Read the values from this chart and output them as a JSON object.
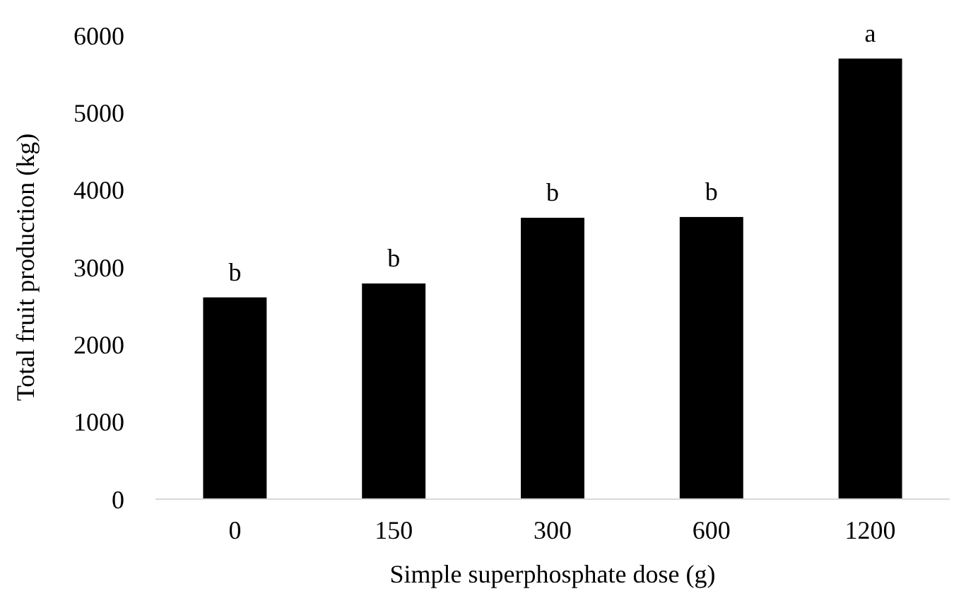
{
  "chart_data": {
    "type": "bar",
    "xlabel": "Simple superphosphate dose (g)",
    "ylabel": "Total fruit production (kg)",
    "categories": [
      "0",
      "150",
      "300",
      "600",
      "1200"
    ],
    "values": [
      2610,
      2790,
      3640,
      3650,
      5700
    ],
    "color": "#000000",
    "ylim": [
      0,
      6000
    ],
    "yticks": [
      0,
      1000,
      2000,
      3000,
      4000,
      5000,
      6000
    ],
    "grid": false,
    "annotations": [
      {
        "text": "b",
        "x": "0",
        "y": 2610
      },
      {
        "text": "b",
        "x": "150",
        "y": 2790
      },
      {
        "text": "b",
        "x": "300",
        "y": 3640
      },
      {
        "text": "b",
        "x": "600",
        "y": 3650
      },
      {
        "text": "a",
        "x": "1200",
        "y": 5700
      }
    ]
  }
}
